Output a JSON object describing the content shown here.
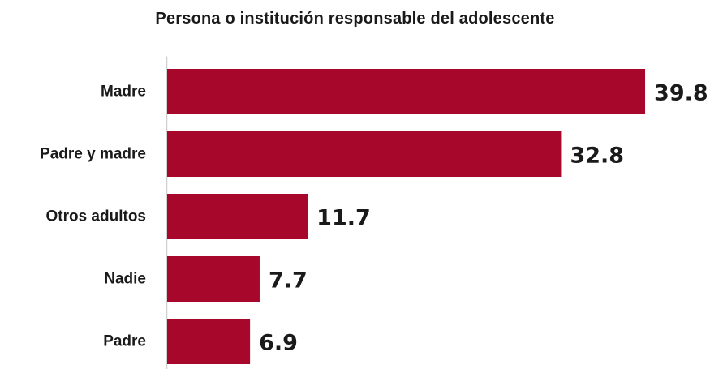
{
  "chart_data": {
    "type": "bar",
    "orientation": "horizontal",
    "title": "Persona o institución responsable del adolescente",
    "categories": [
      "Madre",
      "Padre y madre",
      "Otros adultos",
      "Nadie",
      "Padre"
    ],
    "values": [
      39.8,
      32.8,
      11.7,
      7.7,
      6.9
    ],
    "xlim": [
      0,
      40
    ],
    "grid": false,
    "legend": "none",
    "bar_color": "#a6072a"
  }
}
